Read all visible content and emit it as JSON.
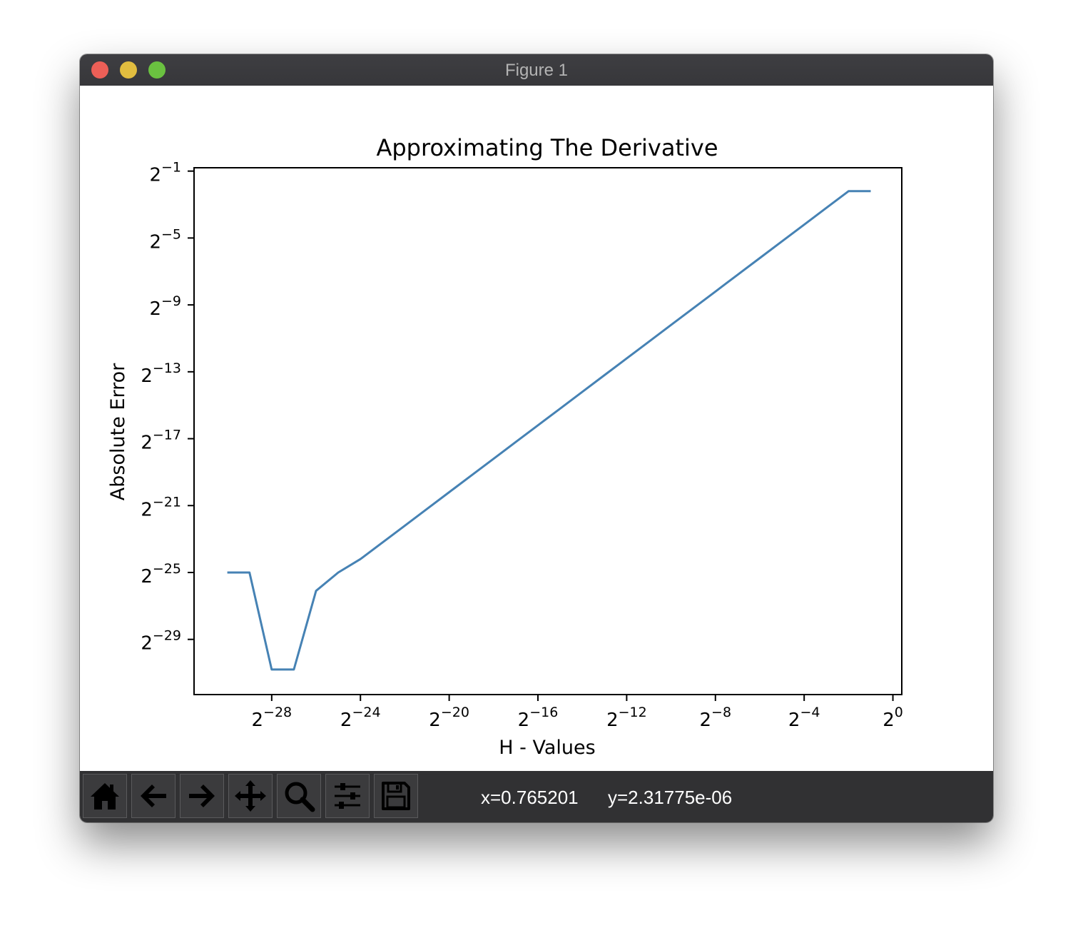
{
  "window": {
    "title": "Figure 1"
  },
  "toolbar": {
    "buttons": [
      {
        "name": "home-button",
        "icon": "home-icon"
      },
      {
        "name": "back-button",
        "icon": "arrow-left-icon"
      },
      {
        "name": "forward-button",
        "icon": "arrow-right-icon"
      },
      {
        "name": "pan-button",
        "icon": "move-icon"
      },
      {
        "name": "zoom-button",
        "icon": "magnifier-icon"
      },
      {
        "name": "configure-subplots-button",
        "icon": "sliders-icon"
      },
      {
        "name": "save-button",
        "icon": "floppy-disk-icon"
      }
    ],
    "x_readout": "x=0.765201",
    "y_readout": "y=2.31775e-06"
  },
  "chart_data": {
    "type": "line",
    "title": "Approximating The Derivative",
    "xlabel": "H - Values",
    "ylabel": "Absolute Error",
    "xscale": "log2",
    "yscale": "log2",
    "x_ticks": [
      {
        "base": "2",
        "exp": "−28",
        "log2": -28
      },
      {
        "base": "2",
        "exp": "−24",
        "log2": -24
      },
      {
        "base": "2",
        "exp": "−20",
        "log2": -20
      },
      {
        "base": "2",
        "exp": "−16",
        "log2": -16
      },
      {
        "base": "2",
        "exp": "−12",
        "log2": -12
      },
      {
        "base": "2",
        "exp": "−8",
        "log2": -8
      },
      {
        "base": "2",
        "exp": "−4",
        "log2": -4
      },
      {
        "base": "2",
        "exp": "0",
        "log2": 0
      }
    ],
    "y_ticks": [
      {
        "base": "2",
        "exp": "−1",
        "log2": -1
      },
      {
        "base": "2",
        "exp": "−5",
        "log2": -5
      },
      {
        "base": "2",
        "exp": "−9",
        "log2": -9
      },
      {
        "base": "2",
        "exp": "−13",
        "log2": -13
      },
      {
        "base": "2",
        "exp": "−17",
        "log2": -17
      },
      {
        "base": "2",
        "exp": "−21",
        "log2": -21
      },
      {
        "base": "2",
        "exp": "−25",
        "log2": -25
      },
      {
        "base": "2",
        "exp": "−29",
        "log2": -29
      }
    ],
    "xlim_log2": [
      -31.5,
      0.4
    ],
    "ylim_log2": [
      -32.3,
      -0.8
    ],
    "grid": false,
    "series": [
      {
        "color": "#4682b4",
        "x": [
          -30,
          -29,
          -28,
          -27,
          -26,
          -25,
          -24,
          -23,
          -22,
          -21,
          -20,
          -19,
          -18,
          -17,
          -16,
          -15,
          -14,
          -13,
          -12,
          -11,
          -10,
          -9,
          -8,
          -7,
          -6,
          -5,
          -4,
          -3,
          -2,
          -1
        ],
        "y": [
          -25.0,
          -25.0,
          -30.8,
          -30.8,
          -26.1,
          -25.0,
          -24.2,
          -23.2,
          -22.2,
          -21.2,
          -20.2,
          -19.2,
          -18.2,
          -17.2,
          -16.2,
          -15.2,
          -14.2,
          -13.2,
          -12.2,
          -11.2,
          -10.2,
          -9.2,
          -8.2,
          -7.2,
          -6.2,
          -5.2,
          -4.2,
          -3.2,
          -2.2,
          -2.2
        ]
      }
    ]
  }
}
